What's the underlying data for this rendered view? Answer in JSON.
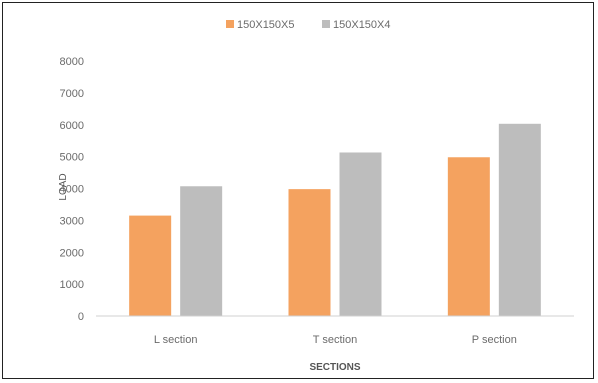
{
  "chart_data": {
    "type": "bar",
    "title": "",
    "xlabel": "SECTIONS",
    "ylabel": "LOAD",
    "categories": [
      "L section",
      "T section",
      "P section"
    ],
    "series": [
      {
        "name": "150X150X5",
        "values": [
          3150,
          3980,
          4980
        ],
        "color": "#f4a25f"
      },
      {
        "name": "150X150X4",
        "values": [
          4070,
          5130,
          6030
        ],
        "color": "#bdbdbd"
      }
    ],
    "ylim": [
      0,
      8000
    ],
    "yticks": [
      0,
      1000,
      2000,
      3000,
      4000,
      5000,
      6000,
      7000,
      8000
    ],
    "grid": false,
    "legend_position": "top-center"
  }
}
